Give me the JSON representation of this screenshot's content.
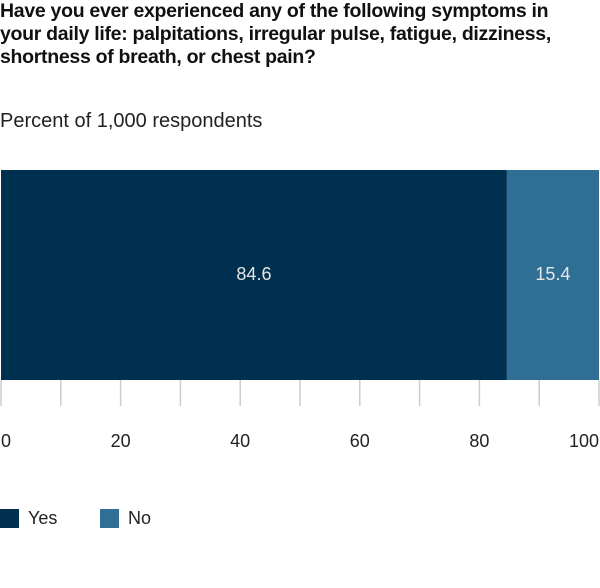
{
  "chart_data": {
    "type": "stacked-bar-horizontal",
    "title": "Have you ever experienced any of the following symptoms in your daily life: palpitations, irregular pulse, fatigue, dizziness, shortness of breath, or chest pain?",
    "subtitle": "Percent of 1,000 respondents",
    "categories": [
      null
    ],
    "series": [
      {
        "name": "Yes",
        "color": "#00304f",
        "values": [
          84.6
        ]
      },
      {
        "name": "No",
        "color": "#2f6e95",
        "values": [
          15.4
        ]
      }
    ],
    "xlim": [
      0,
      100
    ],
    "xticks": [
      0,
      20,
      40,
      60,
      80,
      100
    ],
    "xminorticks": [
      10,
      30,
      50,
      70,
      90
    ],
    "legend": "bottom-left"
  }
}
